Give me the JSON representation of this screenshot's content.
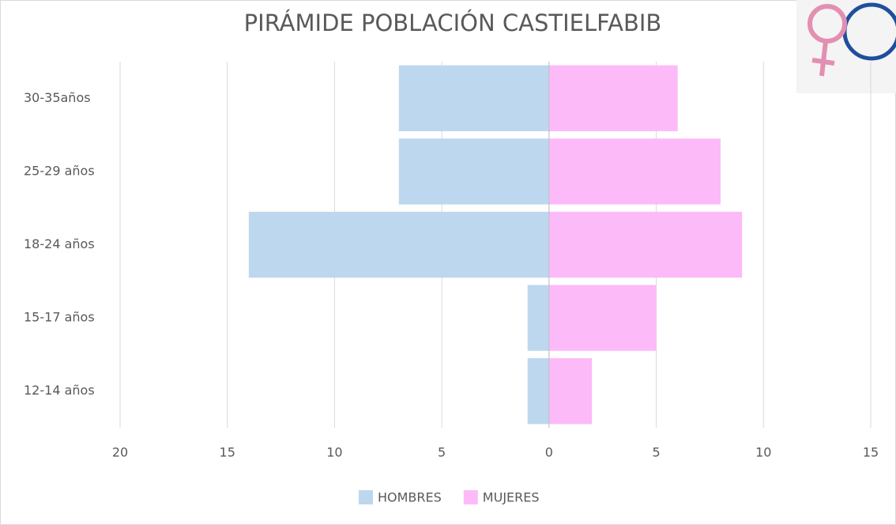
{
  "chart_data": {
    "type": "bar",
    "orientation": "horizontal",
    "stacked": true,
    "title": "PIRÁMIDE POBLACIÓN CASTIELFABIB",
    "categories": [
      "30-35años ",
      "25-29 años",
      "18-24 años",
      "15-17 años",
      "12-14 años"
    ],
    "series": [
      {
        "name": "HOMBRES",
        "color": "#bdd7ee",
        "values": [
          -7,
          -7,
          -14,
          -1,
          -1
        ]
      },
      {
        "name": "MUJERES",
        "color": "#fdbaf8",
        "values": [
          6,
          8,
          9,
          5,
          2
        ]
      }
    ],
    "xlim": [
      -20,
      15
    ],
    "xticks": [
      {
        "value": -20,
        "label": "20"
      },
      {
        "value": -15,
        "label": "15"
      },
      {
        "value": -10,
        "label": "10"
      },
      {
        "value": -5,
        "label": "5"
      },
      0,
      5,
      10,
      15
    ],
    "grid": true,
    "legend": "bottom"
  }
}
